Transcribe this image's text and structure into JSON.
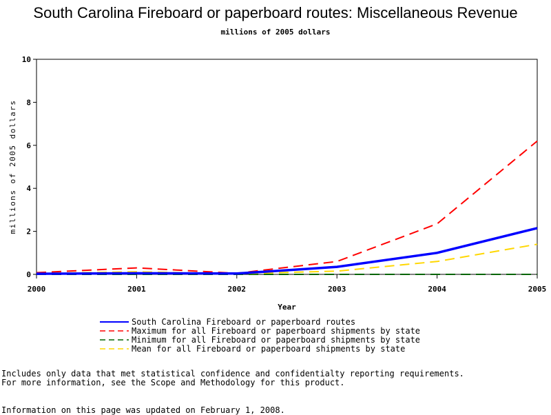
{
  "chart_data": {
    "type": "line",
    "title": "South Carolina Fireboard or paperboard routes: Miscellaneous Revenue",
    "subtitle": "millions of 2005 dollars",
    "xlabel": "Year",
    "ylabel": "millions of 2005 dollars",
    "x": [
      2000,
      2001,
      2002,
      2003,
      2004,
      2005
    ],
    "xlim": [
      2000,
      2005
    ],
    "ylim": [
      0,
      10
    ],
    "yticks": [
      0,
      2,
      4,
      6,
      8,
      10
    ],
    "grid": false,
    "legend_position": "bottom",
    "series": [
      {
        "name": "South Carolina Fireboard or paperboard routes",
        "values": [
          0.03,
          0.05,
          0.04,
          0.35,
          1.0,
          2.15
        ],
        "color": "#0000ff",
        "dash": "solid"
      },
      {
        "name": "Maximum for all Fireboard or paperboard shipments by state",
        "values": [
          0.08,
          0.3,
          0.05,
          0.6,
          2.35,
          6.2
        ],
        "color": "#ff0000",
        "dash": "dashed"
      },
      {
        "name": "Minimum for all Fireboard or paperboard shipments by state",
        "values": [
          0.0,
          0.0,
          0.0,
          0.0,
          0.0,
          0.0
        ],
        "color": "#006400",
        "dash": "dashed"
      },
      {
        "name": "Mean for all Fireboard or paperboard shipments by state",
        "values": [
          0.04,
          0.12,
          0.03,
          0.15,
          0.6,
          1.4
        ],
        "color": "#ffd700",
        "dash": "dashed"
      }
    ]
  },
  "notes": [
    "Includes only data that met statistical confidence and confidentialty reporting requirements.",
    "For more information, see the Scope and Methodology for this product."
  ],
  "updated": "Information on this page was updated on February 1, 2008."
}
